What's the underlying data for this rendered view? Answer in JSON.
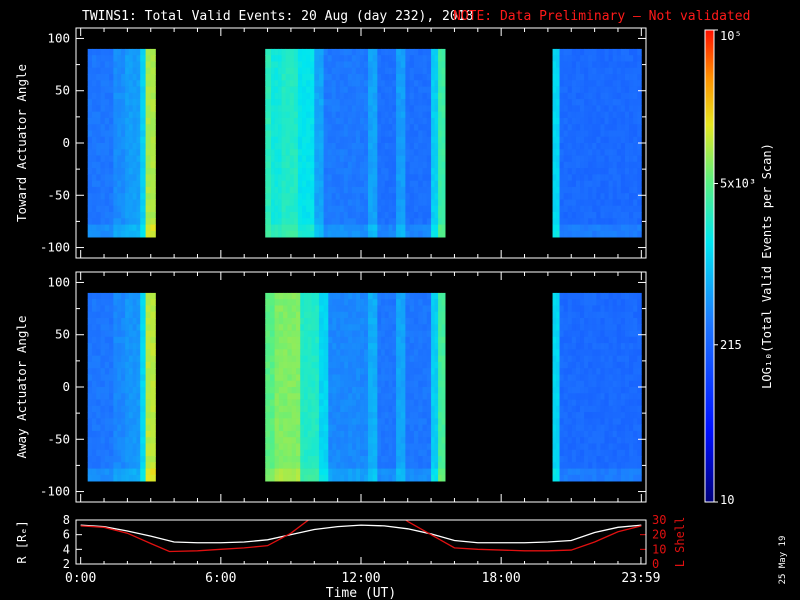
{
  "header": {
    "title": "TWINS1: Total Valid Events: 20 Aug (day 232), 2018",
    "note": "NOTE: Data Preliminary — Not validated"
  },
  "colors": {
    "background": "#000000",
    "axes": "#ffffff",
    "note": "#ff1a1a",
    "r_line": "#ffffff",
    "lshell_line": "#e01010"
  },
  "colorbar": {
    "label": "LOG₁₀(Total Valid Events per Scan)",
    "scale": "log",
    "range": [
      10,
      100000
    ],
    "ticks": [
      {
        "value": 10,
        "label": "10"
      },
      {
        "value": 215,
        "label": "215"
      },
      {
        "value": 5000,
        "label": "5x10³"
      },
      {
        "value": 100000,
        "label": "10⁵"
      }
    ]
  },
  "stamp": "25 May 19",
  "chart_data": [
    {
      "type": "heatmap",
      "name": "toward",
      "ylabel": "Toward Actuator Angle",
      "ylim": [
        -110,
        110
      ],
      "yticks": [
        -100,
        -50,
        0,
        50,
        100
      ],
      "xlim": [
        -0.2,
        24.2
      ],
      "xticks_minor": [
        1,
        2,
        3,
        4,
        5,
        7,
        8,
        9,
        10,
        11,
        13,
        14,
        15,
        16,
        17,
        19,
        20,
        21,
        22,
        23
      ],
      "angle_range": [
        -90,
        90
      ],
      "data_intervals_ut": [
        [
          0.3,
          3.2
        ],
        [
          7.9,
          15.6
        ],
        [
          20.2,
          24.0
        ]
      ],
      "column_profile_log10": [
        {
          "t": [
            0.3,
            1.4
          ],
          "v": 2.5
        },
        {
          "t": [
            1.4,
            1.9
          ],
          "v": 2.65
        },
        {
          "t": [
            1.9,
            2.55
          ],
          "v": 2.75
        },
        {
          "t": [
            2.55,
            2.78
          ],
          "v": 3.05
        },
        {
          "t": [
            2.78,
            3.2
          ],
          "v": 4.0
        },
        {
          "t": [
            7.9,
            8.15
          ],
          "v": 3.45
        },
        {
          "t": [
            8.15,
            8.6
          ],
          "v": 3.3
        },
        {
          "t": [
            8.6,
            9.3
          ],
          "v": 3.4
        },
        {
          "t": [
            9.3,
            10.0
          ],
          "v": 3.2
        },
        {
          "t": [
            10.0,
            10.4
          ],
          "v": 2.8
        },
        {
          "t": [
            10.4,
            12.3
          ],
          "v": 2.52
        },
        {
          "t": [
            12.3,
            12.7
          ],
          "v": 2.78
        },
        {
          "t": [
            12.7,
            13.5
          ],
          "v": 2.45
        },
        {
          "t": [
            13.5,
            13.9
          ],
          "v": 2.75
        },
        {
          "t": [
            13.9,
            15.0
          ],
          "v": 2.45
        },
        {
          "t": [
            15.0,
            15.3
          ],
          "v": 3.05
        },
        {
          "t": [
            15.3,
            15.6
          ],
          "v": 3.55
        },
        {
          "t": [
            20.2,
            20.5
          ],
          "v": 3.1
        },
        {
          "t": [
            20.5,
            24.0
          ],
          "v": 2.4
        }
      ]
    },
    {
      "type": "heatmap",
      "name": "away",
      "ylabel": "Away Actuator Angle",
      "ylim": [
        -110,
        110
      ],
      "yticks": [
        -100,
        -50,
        0,
        50,
        100
      ],
      "xlim": [
        -0.2,
        24.2
      ],
      "xticks_minor": [
        1,
        2,
        3,
        4,
        5,
        7,
        8,
        9,
        10,
        11,
        13,
        14,
        15,
        16,
        17,
        19,
        20,
        21,
        22,
        23
      ],
      "angle_range": [
        -90,
        90
      ],
      "data_intervals_ut": [
        [
          0.3,
          3.2
        ],
        [
          7.9,
          15.6
        ],
        [
          20.2,
          24.0
        ]
      ],
      "column_profile_log10": [
        {
          "t": [
            0.3,
            1.4
          ],
          "v": 2.5
        },
        {
          "t": [
            1.4,
            1.9
          ],
          "v": 2.62
        },
        {
          "t": [
            1.9,
            2.55
          ],
          "v": 2.7
        },
        {
          "t": [
            2.55,
            2.78
          ],
          "v": 3.1
        },
        {
          "t": [
            2.78,
            3.2
          ],
          "v": 4.05
        },
        {
          "t": [
            7.9,
            8.3
          ],
          "v": 3.7
        },
        {
          "t": [
            8.3,
            9.4
          ],
          "v": 3.85
        },
        {
          "t": [
            9.4,
            10.2
          ],
          "v": 3.4
        },
        {
          "t": [
            10.2,
            10.6
          ],
          "v": 3.1
        },
        {
          "t": [
            10.6,
            12.3
          ],
          "v": 2.62
        },
        {
          "t": [
            12.3,
            12.7
          ],
          "v": 2.85
        },
        {
          "t": [
            12.7,
            13.5
          ],
          "v": 2.5
        },
        {
          "t": [
            13.5,
            13.9
          ],
          "v": 2.8
        },
        {
          "t": [
            13.9,
            15.0
          ],
          "v": 2.5
        },
        {
          "t": [
            15.0,
            15.3
          ],
          "v": 3.05
        },
        {
          "t": [
            15.3,
            15.6
          ],
          "v": 3.6
        },
        {
          "t": [
            20.2,
            20.5
          ],
          "v": 3.1
        },
        {
          "t": [
            20.5,
            24.0
          ],
          "v": 2.4
        }
      ]
    },
    {
      "type": "line",
      "name": "orbit",
      "xlabel": "Time (UT)",
      "xlim": [
        -0.2,
        24.2
      ],
      "xticks": [
        0,
        6,
        12,
        18,
        23.983
      ],
      "xtick_labels": [
        "0:00",
        "6:00",
        "12:00",
        "18:00",
        "23:59"
      ],
      "ylabel_left": "R [Rₑ]",
      "ylim_left": [
        2,
        8
      ],
      "yticks_left": [
        2,
        4,
        6,
        8
      ],
      "ylabel_right": "L Shell",
      "ylim_right": [
        0,
        30
      ],
      "yticks_right": [
        0,
        10,
        20,
        30
      ],
      "series": [
        {
          "name": "R [Rₑ]",
          "axis": "left",
          "x": [
            0,
            1,
            2,
            3,
            4,
            5,
            6,
            7,
            8,
            9,
            10,
            11,
            12,
            13,
            14,
            15,
            16,
            17,
            18,
            19,
            20,
            21,
            22,
            23,
            24
          ],
          "y": [
            7.3,
            7.1,
            6.5,
            5.8,
            5.0,
            4.9,
            4.9,
            5.0,
            5.3,
            6.0,
            6.7,
            7.1,
            7.3,
            7.2,
            6.8,
            6.1,
            5.2,
            4.9,
            4.9,
            4.9,
            5.0,
            5.2,
            6.3,
            7.0,
            7.3
          ]
        },
        {
          "name": "L Shell",
          "axis": "right",
          "x": [
            0,
            1,
            2,
            3,
            3.8,
            5,
            6,
            7,
            8,
            9,
            10,
            10.3,
            12,
            13.6,
            14,
            15,
            16,
            17,
            18,
            19,
            20,
            21,
            22,
            23,
            24
          ],
          "y": [
            26,
            25,
            21,
            14,
            8.5,
            9,
            10,
            11,
            12.5,
            21,
            33,
            34,
            null,
            34,
            29,
            20,
            11,
            10,
            9.5,
            9,
            9,
            9.5,
            15,
            22,
            26
          ]
        }
      ]
    }
  ]
}
